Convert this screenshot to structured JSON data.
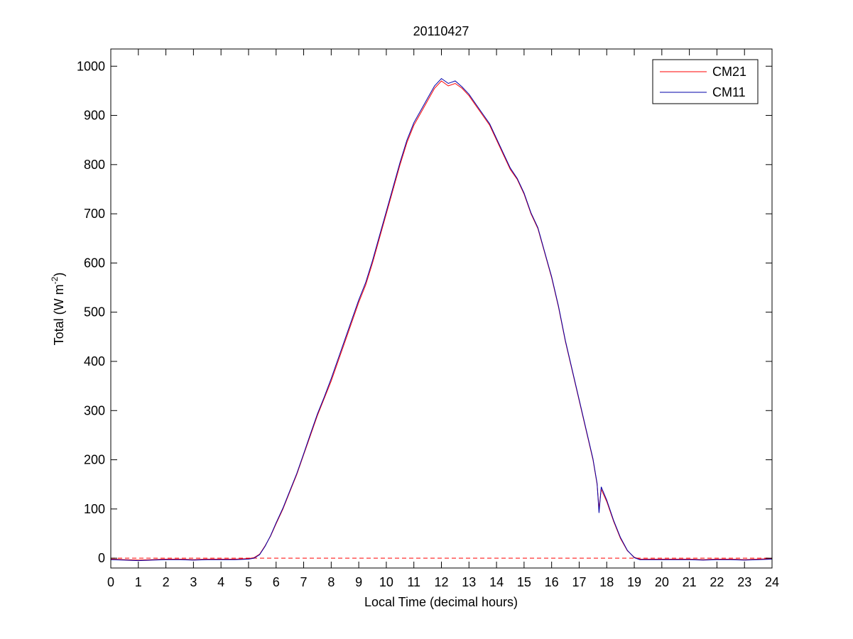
{
  "chart_data": {
    "type": "line",
    "title": "20110427",
    "xlabel": "Local Time (decimal hours)",
    "ylabel": {
      "base": "Total (W m",
      "superscript": "-2",
      "close": ")"
    },
    "xlim": [
      0,
      24
    ],
    "ylim": [
      -20,
      1035
    ],
    "xticks": [
      0,
      1,
      2,
      3,
      4,
      5,
      6,
      7,
      8,
      9,
      10,
      11,
      12,
      13,
      14,
      15,
      16,
      17,
      18,
      19,
      20,
      21,
      22,
      23,
      24
    ],
    "yticks": [
      0,
      100,
      200,
      300,
      400,
      500,
      600,
      700,
      800,
      900,
      1000
    ],
    "grid": false,
    "legend_position": "top-right",
    "reference_line": {
      "y": 0,
      "color": "#ff0000",
      "style": "dashed"
    },
    "series": [
      {
        "name": "CM21",
        "color": "#ff0000",
        "x": [
          0,
          0.5,
          1,
          1.5,
          2,
          2.5,
          3,
          3.5,
          4,
          4.5,
          5,
          5.2,
          5.4,
          5.6,
          5.8,
          6,
          6.25,
          6.5,
          6.75,
          7,
          7.25,
          7.5,
          7.75,
          8,
          8.25,
          8.5,
          8.75,
          9,
          9.25,
          9.5,
          9.75,
          10,
          10.25,
          10.5,
          10.75,
          11,
          11.25,
          11.5,
          11.75,
          12,
          12.25,
          12.5,
          12.75,
          13,
          13.25,
          13.5,
          13.75,
          14,
          14.25,
          14.5,
          14.75,
          15,
          15.25,
          15.5,
          15.75,
          16,
          16.25,
          16.5,
          16.75,
          17,
          17.25,
          17.5,
          17.65,
          17.72,
          17.8,
          18,
          18.25,
          18.5,
          18.75,
          19,
          19.2,
          19.5,
          20,
          20.5,
          21,
          21.5,
          22,
          22.5,
          23,
          23.5,
          24
        ],
        "values": [
          -2,
          -3,
          -4,
          -3,
          -2,
          -2,
          -3,
          -2,
          -2,
          -2,
          -1,
          1,
          8,
          25,
          45,
          70,
          100,
          135,
          170,
          210,
          250,
          290,
          325,
          360,
          400,
          440,
          480,
          520,
          555,
          600,
          650,
          700,
          750,
          800,
          845,
          880,
          905,
          930,
          955,
          970,
          960,
          965,
          955,
          940,
          920,
          900,
          880,
          850,
          820,
          790,
          770,
          740,
          700,
          670,
          620,
          570,
          510,
          440,
          380,
          320,
          260,
          200,
          150,
          100,
          140,
          115,
          75,
          40,
          15,
          2,
          -2,
          -2,
          -2,
          -2,
          -2,
          -3,
          -2,
          -2,
          -3,
          -2,
          -1
        ]
      },
      {
        "name": "CM11",
        "color": "#0000aa",
        "x": [
          0,
          0.5,
          1,
          1.5,
          2,
          2.5,
          3,
          3.5,
          4,
          4.5,
          5,
          5.2,
          5.4,
          5.6,
          5.8,
          6,
          6.25,
          6.5,
          6.75,
          7,
          7.25,
          7.5,
          7.75,
          8,
          8.25,
          8.5,
          8.75,
          9,
          9.25,
          9.5,
          9.75,
          10,
          10.25,
          10.5,
          10.75,
          11,
          11.25,
          11.5,
          11.75,
          12,
          12.25,
          12.5,
          12.75,
          13,
          13.25,
          13.5,
          13.75,
          14,
          14.25,
          14.5,
          14.75,
          15,
          15.25,
          15.5,
          15.75,
          16,
          16.25,
          16.5,
          16.75,
          17,
          17.25,
          17.5,
          17.65,
          17.72,
          17.8,
          18,
          18.25,
          18.5,
          18.75,
          19,
          19.2,
          19.5,
          20,
          20.5,
          21,
          21.5,
          22,
          22.5,
          23,
          23.5,
          24
        ],
        "values": [
          -3,
          -4,
          -5,
          -4,
          -3,
          -3,
          -4,
          -3,
          -3,
          -3,
          -2,
          0,
          7,
          24,
          46,
          72,
          102,
          137,
          172,
          212,
          253,
          293,
          328,
          365,
          405,
          445,
          485,
          525,
          560,
          605,
          655,
          705,
          755,
          805,
          850,
          885,
          910,
          935,
          960,
          975,
          965,
          970,
          958,
          943,
          923,
          903,
          883,
          853,
          823,
          793,
          772,
          742,
          702,
          672,
          622,
          572,
          512,
          442,
          382,
          322,
          262,
          202,
          152,
          92,
          145,
          118,
          77,
          42,
          16,
          1,
          -3,
          -3,
          -3,
          -3,
          -3,
          -4,
          -3,
          -3,
          -4,
          -3,
          -2
        ]
      }
    ]
  }
}
